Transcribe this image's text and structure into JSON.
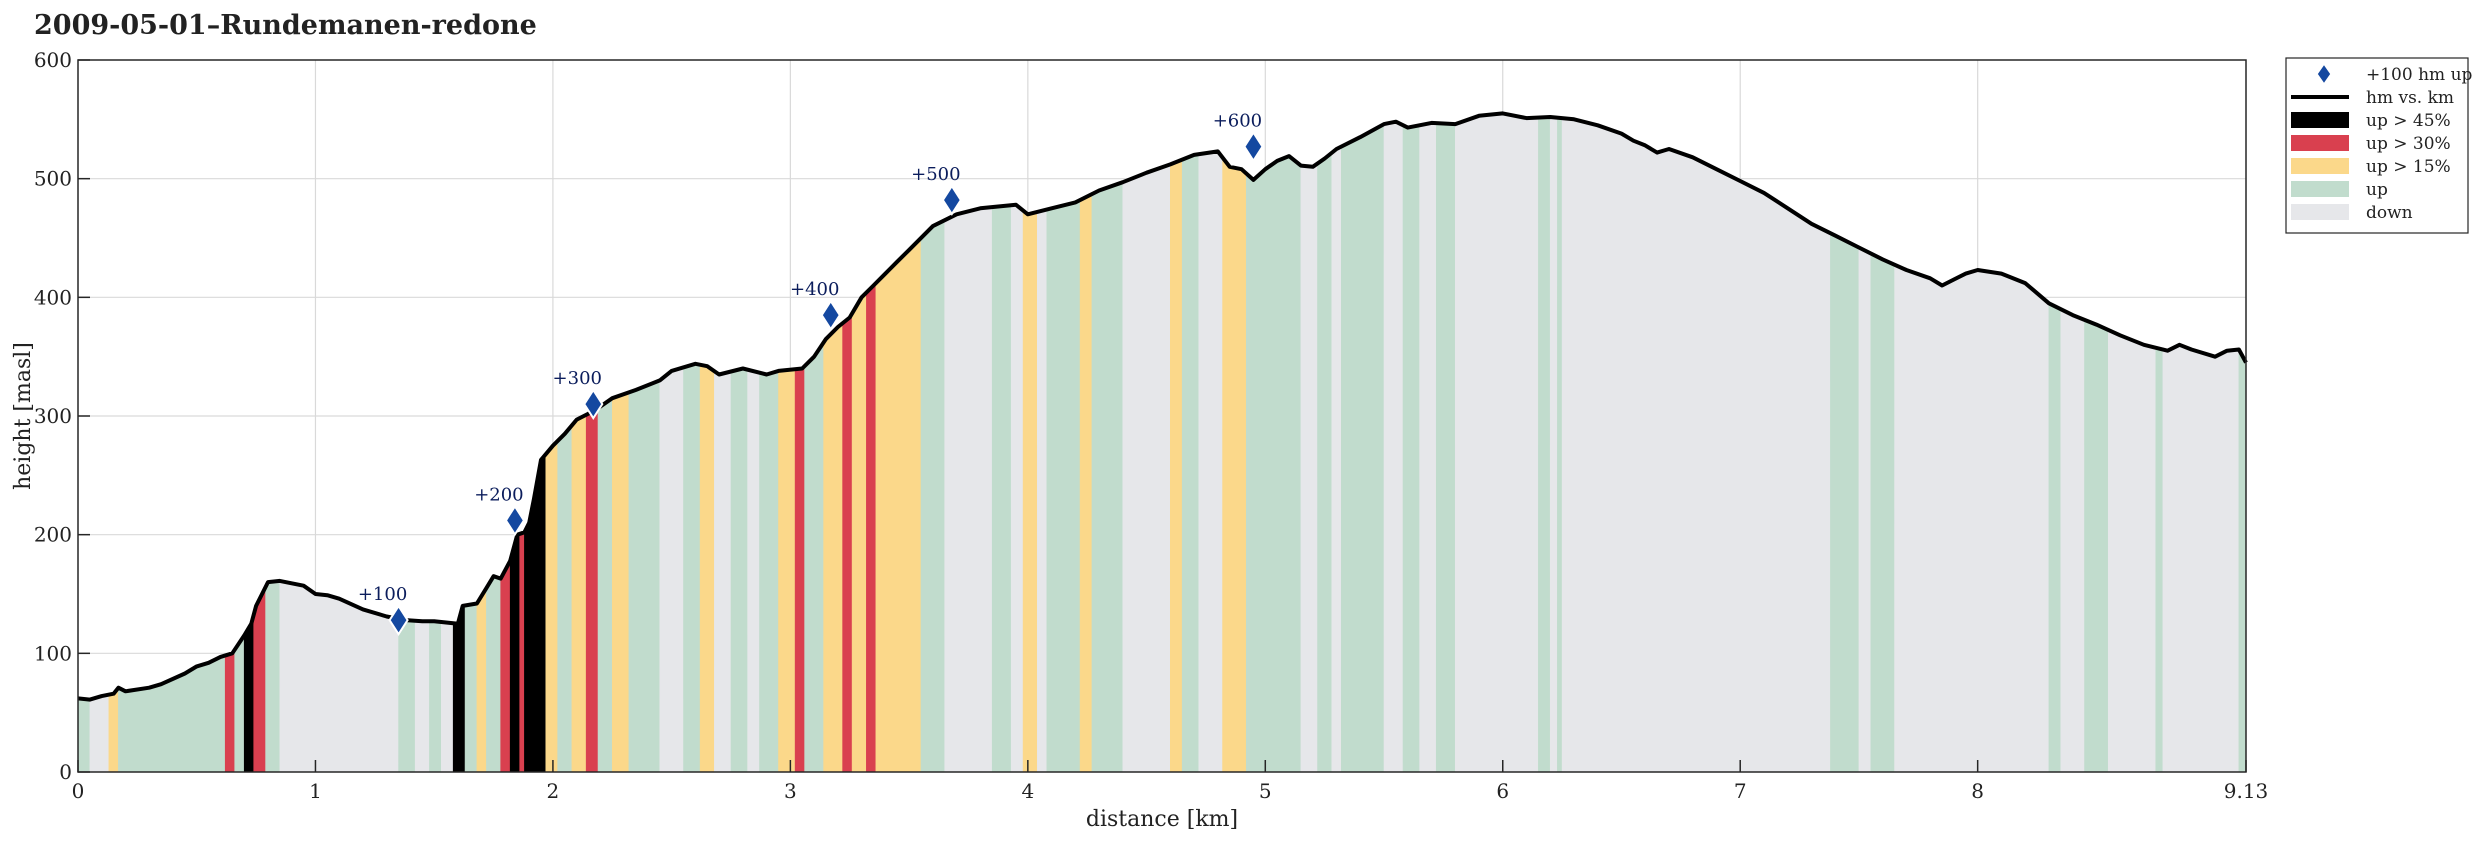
{
  "chart_data": {
    "type": "area",
    "title": "2009-05-01–Rundemanen-redone",
    "xlabel": "distance [km]",
    "ylabel": "height [masl]",
    "xlim": [
      0,
      9.13
    ],
    "ylim": [
      0,
      600
    ],
    "x_ticks": [
      "0",
      "1",
      "2",
      "3",
      "4",
      "5",
      "6",
      "7",
      "8",
      "9.13"
    ],
    "x_tick_values": [
      0,
      1,
      2,
      3,
      4,
      5,
      6,
      7,
      8,
      9.13
    ],
    "y_ticks": [
      "0",
      "100",
      "200",
      "300",
      "400",
      "500",
      "600"
    ],
    "y_tick_values": [
      0,
      100,
      200,
      300,
      400,
      500,
      600
    ],
    "grid": true,
    "legend_position": "outside-top-right",
    "colors": {
      "line": "#000000",
      "steep45": "#000000",
      "steep30": "#d9404f",
      "steep15": "#fbd88a",
      "up": "#c1dccd",
      "down": "#e6e7ea",
      "marker": "#1448a0"
    },
    "legend": [
      {
        "key": "marker",
        "label": "+100 hm up"
      },
      {
        "key": "line",
        "label": "hm vs. km"
      },
      {
        "key": "steep45",
        "label": "up > 45%"
      },
      {
        "key": "steep30",
        "label": "up > 30%"
      },
      {
        "key": "steep15",
        "label": "up > 15%"
      },
      {
        "key": "up",
        "label": "up"
      },
      {
        "key": "down",
        "label": "down"
      }
    ],
    "profile": [
      [
        0,
        62
      ],
      [
        0.05,
        61
      ],
      [
        0.1,
        64
      ],
      [
        0.15,
        66
      ],
      [
        0.17,
        71
      ],
      [
        0.2,
        68
      ],
      [
        0.3,
        71
      ],
      [
        0.35,
        74
      ],
      [
        0.45,
        83
      ],
      [
        0.5,
        89
      ],
      [
        0.55,
        92
      ],
      [
        0.6,
        97
      ],
      [
        0.65,
        100
      ],
      [
        0.7,
        115
      ],
      [
        0.73,
        125
      ],
      [
        0.75,
        140
      ],
      [
        0.8,
        160
      ],
      [
        0.85,
        161
      ],
      [
        0.95,
        157
      ],
      [
        1.0,
        150
      ],
      [
        1.05,
        149
      ],
      [
        1.1,
        146
      ],
      [
        1.2,
        137
      ],
      [
        1.3,
        131
      ],
      [
        1.38,
        128
      ],
      [
        1.45,
        127
      ],
      [
        1.5,
        127
      ],
      [
        1.55,
        126
      ],
      [
        1.6,
        125
      ],
      [
        1.62,
        140
      ],
      [
        1.68,
        142
      ],
      [
        1.72,
        155
      ],
      [
        1.75,
        165
      ],
      [
        1.78,
        163
      ],
      [
        1.82,
        178
      ],
      [
        1.85,
        200
      ],
      [
        1.88,
        202
      ],
      [
        1.9,
        210
      ],
      [
        1.92,
        230
      ],
      [
        1.95,
        263
      ],
      [
        2.0,
        275
      ],
      [
        2.05,
        285
      ],
      [
        2.1,
        297
      ],
      [
        2.15,
        302
      ],
      [
        2.2,
        308
      ],
      [
        2.25,
        315
      ],
      [
        2.35,
        322
      ],
      [
        2.45,
        330
      ],
      [
        2.5,
        338
      ],
      [
        2.6,
        344
      ],
      [
        2.65,
        342
      ],
      [
        2.7,
        335
      ],
      [
        2.8,
        340
      ],
      [
        2.9,
        335
      ],
      [
        2.95,
        338
      ],
      [
        3.05,
        340
      ],
      [
        3.1,
        350
      ],
      [
        3.15,
        365
      ],
      [
        3.2,
        375
      ],
      [
        3.25,
        383
      ],
      [
        3.3,
        400
      ],
      [
        3.35,
        410
      ],
      [
        3.4,
        420
      ],
      [
        3.45,
        430
      ],
      [
        3.5,
        440
      ],
      [
        3.6,
        460
      ],
      [
        3.7,
        470
      ],
      [
        3.8,
        475
      ],
      [
        3.95,
        478
      ],
      [
        4.0,
        470
      ],
      [
        4.1,
        475
      ],
      [
        4.2,
        480
      ],
      [
        4.3,
        490
      ],
      [
        4.4,
        497
      ],
      [
        4.5,
        505
      ],
      [
        4.6,
        512
      ],
      [
        4.7,
        520
      ],
      [
        4.8,
        523
      ],
      [
        4.85,
        510
      ],
      [
        4.9,
        508
      ],
      [
        4.95,
        499
      ],
      [
        5.0,
        508
      ],
      [
        5.05,
        515
      ],
      [
        5.1,
        519
      ],
      [
        5.15,
        511
      ],
      [
        5.2,
        510
      ],
      [
        5.25,
        517
      ],
      [
        5.3,
        525
      ],
      [
        5.4,
        535
      ],
      [
        5.5,
        546
      ],
      [
        5.55,
        548
      ],
      [
        5.6,
        543
      ],
      [
        5.7,
        547
      ],
      [
        5.8,
        546
      ],
      [
        5.9,
        553
      ],
      [
        6.0,
        555
      ],
      [
        6.1,
        551
      ],
      [
        6.2,
        552
      ],
      [
        6.3,
        550
      ],
      [
        6.4,
        545
      ],
      [
        6.5,
        538
      ],
      [
        6.55,
        532
      ],
      [
        6.6,
        528
      ],
      [
        6.65,
        522
      ],
      [
        6.7,
        525
      ],
      [
        6.8,
        518
      ],
      [
        6.9,
        508
      ],
      [
        7.0,
        498
      ],
      [
        7.1,
        488
      ],
      [
        7.2,
        475
      ],
      [
        7.3,
        462
      ],
      [
        7.4,
        452
      ],
      [
        7.5,
        442
      ],
      [
        7.6,
        432
      ],
      [
        7.7,
        423
      ],
      [
        7.8,
        416
      ],
      [
        7.85,
        410
      ],
      [
        7.9,
        415
      ],
      [
        7.95,
        420
      ],
      [
        8.0,
        423
      ],
      [
        8.1,
        420
      ],
      [
        8.2,
        412
      ],
      [
        8.3,
        395
      ],
      [
        8.4,
        385
      ],
      [
        8.5,
        377
      ],
      [
        8.6,
        368
      ],
      [
        8.7,
        360
      ],
      [
        8.8,
        355
      ],
      [
        8.85,
        360
      ],
      [
        8.9,
        356
      ],
      [
        9.0,
        350
      ],
      [
        9.05,
        355
      ],
      [
        9.1,
        356
      ],
      [
        9.13,
        345
      ]
    ],
    "segments": [
      [
        0,
        0.05,
        "up"
      ],
      [
        0.05,
        0.13,
        "down"
      ],
      [
        0.13,
        0.17,
        "steep15"
      ],
      [
        0.17,
        0.62,
        "up"
      ],
      [
        0.62,
        0.66,
        "steep30"
      ],
      [
        0.66,
        0.7,
        "up"
      ],
      [
        0.7,
        0.74,
        "steep45"
      ],
      [
        0.74,
        0.79,
        "steep30"
      ],
      [
        0.79,
        0.85,
        "up"
      ],
      [
        0.85,
        1.35,
        "down"
      ],
      [
        1.35,
        1.42,
        "up"
      ],
      [
        1.42,
        1.48,
        "down"
      ],
      [
        1.48,
        1.53,
        "up"
      ],
      [
        1.53,
        1.58,
        "down"
      ],
      [
        1.58,
        1.63,
        "steep45"
      ],
      [
        1.63,
        1.68,
        "up"
      ],
      [
        1.68,
        1.72,
        "steep15"
      ],
      [
        1.72,
        1.78,
        "up"
      ],
      [
        1.78,
        1.82,
        "steep30"
      ],
      [
        1.82,
        1.86,
        "steep45"
      ],
      [
        1.86,
        1.88,
        "steep30"
      ],
      [
        1.88,
        1.97,
        "steep45"
      ],
      [
        1.97,
        2.02,
        "steep15"
      ],
      [
        2.02,
        2.08,
        "up"
      ],
      [
        2.08,
        2.14,
        "steep15"
      ],
      [
        2.14,
        2.19,
        "steep30"
      ],
      [
        2.19,
        2.25,
        "up"
      ],
      [
        2.25,
        2.32,
        "steep15"
      ],
      [
        2.32,
        2.45,
        "up"
      ],
      [
        2.45,
        2.55,
        "down"
      ],
      [
        2.55,
        2.62,
        "up"
      ],
      [
        2.62,
        2.68,
        "steep15"
      ],
      [
        2.68,
        2.75,
        "down"
      ],
      [
        2.75,
        2.82,
        "up"
      ],
      [
        2.82,
        2.87,
        "down"
      ],
      [
        2.87,
        2.95,
        "up"
      ],
      [
        2.95,
        3.02,
        "steep15"
      ],
      [
        3.02,
        3.06,
        "steep30"
      ],
      [
        3.06,
        3.14,
        "up"
      ],
      [
        3.14,
        3.22,
        "steep15"
      ],
      [
        3.22,
        3.26,
        "steep30"
      ],
      [
        3.26,
        3.32,
        "steep15"
      ],
      [
        3.32,
        3.36,
        "steep30"
      ],
      [
        3.36,
        3.55,
        "steep15"
      ],
      [
        3.55,
        3.65,
        "up"
      ],
      [
        3.65,
        3.85,
        "down"
      ],
      [
        3.85,
        3.93,
        "up"
      ],
      [
        3.93,
        3.98,
        "down"
      ],
      [
        3.98,
        4.04,
        "steep15"
      ],
      [
        4.04,
        4.08,
        "down"
      ],
      [
        4.08,
        4.22,
        "up"
      ],
      [
        4.22,
        4.27,
        "steep15"
      ],
      [
        4.27,
        4.4,
        "up"
      ],
      [
        4.4,
        4.6,
        "down"
      ],
      [
        4.6,
        4.65,
        "steep15"
      ],
      [
        4.65,
        4.72,
        "up"
      ],
      [
        4.72,
        4.82,
        "down"
      ],
      [
        4.82,
        4.92,
        "steep15"
      ],
      [
        4.92,
        5.15,
        "up"
      ],
      [
        5.15,
        5.22,
        "down"
      ],
      [
        5.22,
        5.28,
        "up"
      ],
      [
        5.28,
        5.32,
        "down"
      ],
      [
        5.32,
        5.5,
        "up"
      ],
      [
        5.5,
        5.58,
        "down"
      ],
      [
        5.58,
        5.65,
        "up"
      ],
      [
        5.65,
        5.72,
        "down"
      ],
      [
        5.72,
        5.8,
        "up"
      ],
      [
        5.8,
        6.15,
        "down"
      ],
      [
        6.15,
        6.2,
        "up"
      ],
      [
        6.2,
        6.23,
        "down"
      ],
      [
        6.23,
        6.25,
        "up"
      ],
      [
        6.25,
        7.38,
        "down"
      ],
      [
        7.38,
        7.5,
        "up"
      ],
      [
        7.5,
        7.55,
        "down"
      ],
      [
        7.55,
        7.65,
        "up"
      ],
      [
        7.65,
        8.3,
        "down"
      ],
      [
        8.3,
        8.35,
        "up"
      ],
      [
        8.35,
        8.45,
        "down"
      ],
      [
        8.45,
        8.55,
        "up"
      ],
      [
        8.55,
        8.75,
        "down"
      ],
      [
        8.75,
        8.78,
        "up"
      ],
      [
        8.78,
        9.1,
        "down"
      ],
      [
        9.1,
        9.13,
        "up"
      ]
    ],
    "milestones": [
      {
        "label": "+100",
        "x": 1.35,
        "y": 128
      },
      {
        "label": "+200",
        "x": 1.84,
        "y": 212
      },
      {
        "label": "+300",
        "x": 2.17,
        "y": 310
      },
      {
        "label": "+400",
        "x": 3.17,
        "y": 385
      },
      {
        "label": "+500",
        "x": 3.68,
        "y": 482
      },
      {
        "label": "+600",
        "x": 4.95,
        "y": 527
      }
    ]
  }
}
